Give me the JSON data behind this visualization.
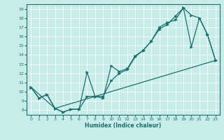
{
  "xlabel": "Humidex (Indice chaleur)",
  "bg_color": "#c8ece8",
  "line_color": "#1a7070",
  "xlim": [
    -0.5,
    23.5
  ],
  "ylim": [
    7.5,
    19.5
  ],
  "xticks": [
    0,
    1,
    2,
    3,
    4,
    5,
    6,
    7,
    8,
    9,
    10,
    11,
    12,
    13,
    14,
    15,
    16,
    17,
    18,
    19,
    20,
    21,
    22,
    23
  ],
  "yticks": [
    8,
    9,
    10,
    11,
    12,
    13,
    14,
    15,
    16,
    17,
    18,
    19
  ],
  "line1_x": [
    0,
    1,
    2,
    3,
    4,
    5,
    6,
    7,
    8,
    9,
    10,
    11,
    12,
    13,
    14,
    15,
    16,
    17,
    18,
    19,
    20,
    21,
    22,
    23
  ],
  "line1_y": [
    10.5,
    9.3,
    9.7,
    8.2,
    7.8,
    8.1,
    8.1,
    12.1,
    9.5,
    9.3,
    12.8,
    12.2,
    12.5,
    13.9,
    14.5,
    15.5,
    17.0,
    17.5,
    17.8,
    19.1,
    18.3,
    18.0,
    16.2,
    13.4
  ],
  "line2_x": [
    0,
    3,
    23
  ],
  "line2_y": [
    10.5,
    8.2,
    13.4
  ],
  "line3_x": [
    0,
    1,
    2,
    3,
    4,
    5,
    6,
    7,
    8,
    9,
    10,
    11,
    12,
    13,
    14,
    15,
    16,
    17,
    18,
    19,
    20,
    21,
    22,
    23
  ],
  "line3_y": [
    10.5,
    9.3,
    9.7,
    8.2,
    7.8,
    8.1,
    8.1,
    9.5,
    9.5,
    9.5,
    11.2,
    12.0,
    12.4,
    13.8,
    14.5,
    15.5,
    16.8,
    17.3,
    18.2,
    19.1,
    14.9,
    18.0,
    16.2,
    13.4
  ]
}
